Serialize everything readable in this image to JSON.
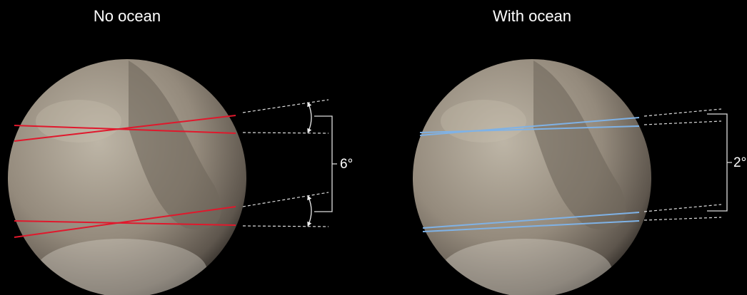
{
  "panels": [
    {
      "title": "No ocean",
      "angle_label": "6°"
    },
    {
      "title": "With ocean",
      "angle_label": "2°"
    }
  ]
}
